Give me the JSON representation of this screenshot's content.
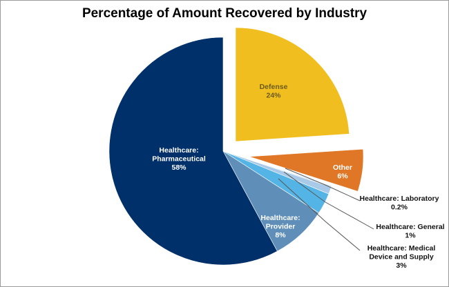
{
  "chart_data": {
    "type": "pie",
    "title": "Percentage of Amount Recovered by Industry",
    "slices": [
      {
        "label": "Defense",
        "value": 24,
        "display": "24%",
        "color": "#f0bf1f",
        "exploded": true
      },
      {
        "label": "Other",
        "value": 6,
        "display": "6%",
        "color": "#e07726",
        "exploded": true
      },
      {
        "label": "Healthcare: Laboratory",
        "value": 0.2,
        "display": "0.2%",
        "color": "#d3e2f1",
        "exploded": false
      },
      {
        "label": "Healthcare: General",
        "value": 1,
        "display": "1%",
        "color": "#a9c9e8",
        "exploded": false
      },
      {
        "label": "Healthcare: Medical Device and Supply",
        "value": 3,
        "display": "3%",
        "color": "#55b4e6",
        "exploded": false
      },
      {
        "label": "Healthcare: Provider",
        "value": 8,
        "display": "8%",
        "color": "#5f8fb8",
        "exploded": false
      },
      {
        "label": "Healthcare: Pharmaceutical",
        "value": 58,
        "display": "58%",
        "color": "#003069",
        "exploded": false
      }
    ],
    "start_angle": "12 o'clock",
    "direction": "clockwise",
    "legend": "none"
  }
}
